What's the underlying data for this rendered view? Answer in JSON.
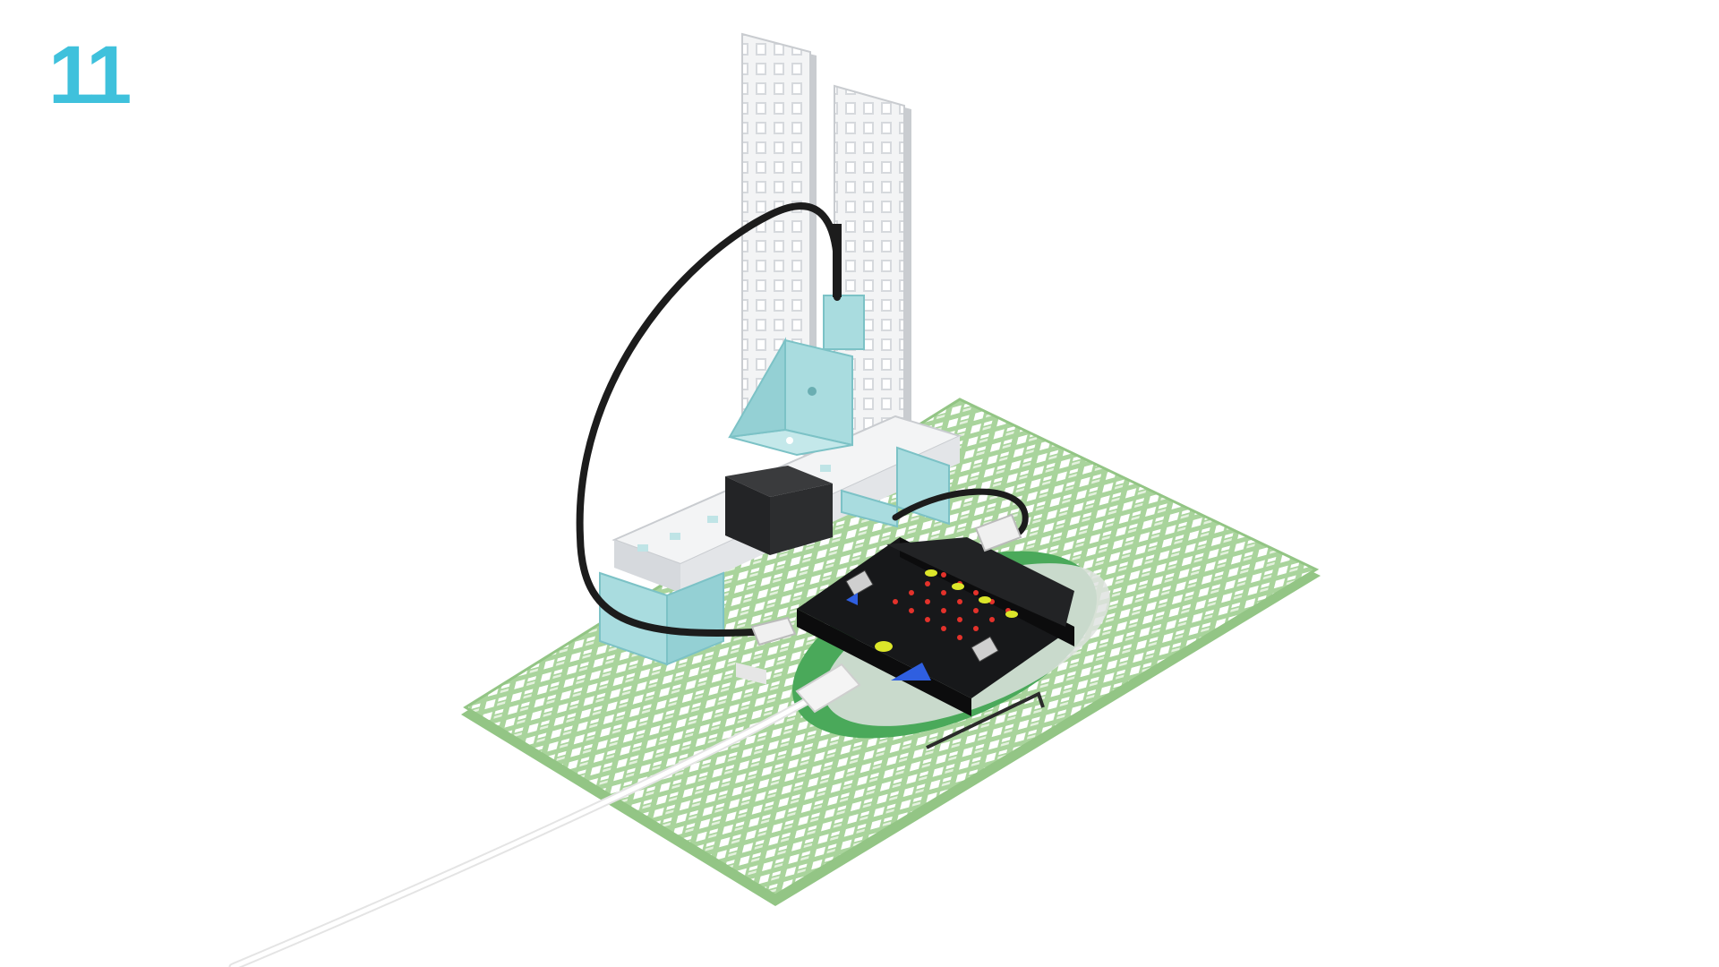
{
  "step": {
    "number": "11"
  },
  "colors": {
    "step_number": "#3fc1dc",
    "base_plate": "#b9dfae",
    "base_plate_edge": "#93c585",
    "frame_white": "#f3f4f5",
    "frame_edge": "#c9ccd0",
    "connector_teal": "#a9dcdf",
    "board_black": "#17181a",
    "led_red": "#e4322b",
    "pad_yellow": "#dce62a",
    "triangle_blue": "#2f5fe0",
    "expansion_green": "#4aa95a",
    "cable_black": "#1c1c1c",
    "usb_cable_white": "#eeeeee"
  },
  "parts": {
    "base_plate": "green-grid-base-plate",
    "beams": "white-vertical-beams",
    "bracket": "teal-corner-bracket",
    "servo": "servo-motor",
    "microbit": "microbit-board",
    "expansion_board": "expansion-board",
    "servo_cable": "black-servo-cable",
    "usb_cable": "white-usb-cable"
  }
}
